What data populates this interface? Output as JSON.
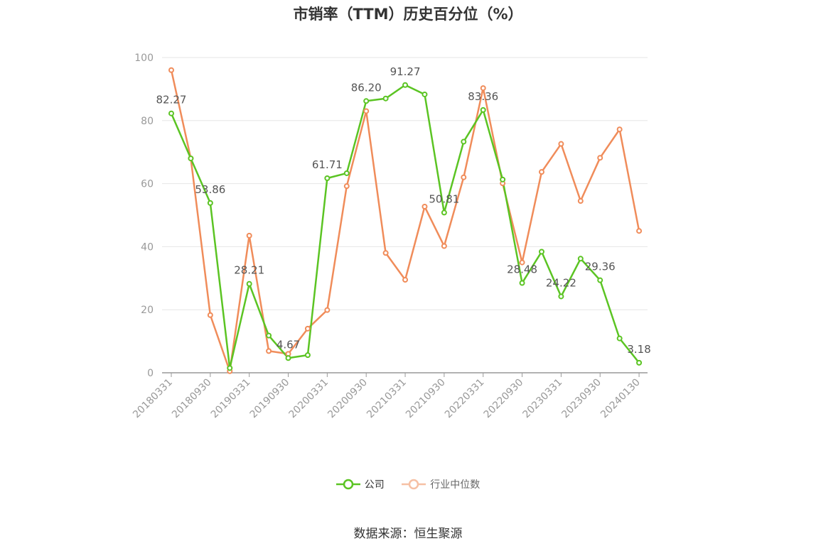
{
  "chart_data": {
    "type": "line",
    "title": "市销率（TTM）历史百分位（%）",
    "x": [
      "20180331",
      "20180630",
      "20180930",
      "20181231",
      "20190331",
      "20190630",
      "20190930",
      "20191231",
      "20200331",
      "20200630",
      "20200930",
      "20201231",
      "20210331",
      "20210630",
      "20210930",
      "20211231",
      "20220331",
      "20220630",
      "20220930",
      "20221231",
      "20230331",
      "20230630",
      "20230930",
      "20231231",
      "20240130"
    ],
    "x_tick_labels": [
      "20180331",
      "20180930",
      "20190331",
      "20190930",
      "20200331",
      "20200930",
      "20210331",
      "20210930",
      "20220331",
      "20220930",
      "20230331",
      "20230930",
      "20240130"
    ],
    "y_tick_labels": [
      "0",
      "20",
      "40",
      "60",
      "80",
      "100"
    ],
    "ylim": [
      0,
      100
    ],
    "grid": true,
    "legend_position": "bottom",
    "series": [
      {
        "name": "公司",
        "color": "#5bc423",
        "values": [
          82.27,
          68.0,
          53.86,
          1.5,
          28.21,
          11.8,
          4.67,
          5.6,
          61.71,
          63.3,
          86.2,
          87.0,
          91.27,
          88.3,
          50.81,
          73.3,
          83.36,
          61.3,
          28.48,
          38.4,
          24.22,
          36.2,
          29.36,
          10.9,
          3.18
        ],
        "labels": [
          "82.27",
          "",
          "53.86",
          "",
          "28.21",
          "",
          "4.67",
          "",
          "61.71",
          "",
          "86.20",
          "",
          "91.27",
          "",
          "50.81",
          "",
          "83.36",
          "",
          "28.48",
          "",
          "24.22",
          "",
          "29.36",
          "",
          "3.18"
        ]
      },
      {
        "name": "行业中位数",
        "color": "#f08c5a",
        "values": [
          96.0,
          68.0,
          18.3,
          0.5,
          43.5,
          6.9,
          6.0,
          14.0,
          19.9,
          59.2,
          83.0,
          38.0,
          29.5,
          52.7,
          40.2,
          62.0,
          90.3,
          60.1,
          35.0,
          63.7,
          72.6,
          54.5,
          68.2,
          77.2,
          45.0
        ]
      }
    ]
  },
  "source": "数据来源：恒生聚源"
}
